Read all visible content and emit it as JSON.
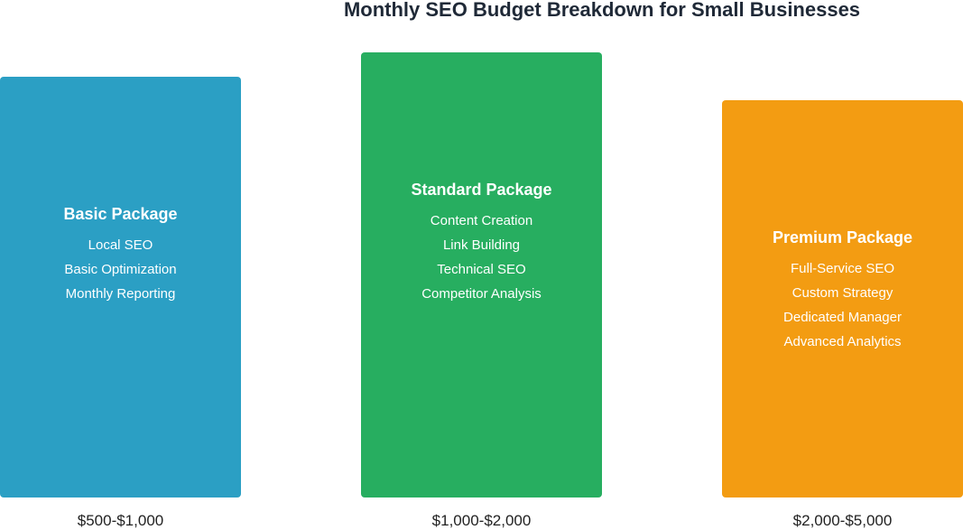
{
  "title": "Monthly SEO Budget Breakdown for Small Businesses",
  "packages": [
    {
      "name": "Basic Package",
      "features": [
        "Local SEO",
        "Basic Optimization",
        "Monthly Reporting"
      ],
      "price": "$500-$1,000",
      "color": "#2b9fc4"
    },
    {
      "name": "Standard Package",
      "features": [
        "Content Creation",
        "Link Building",
        "Technical SEO",
        "Competitor Analysis"
      ],
      "price": "$1,000-$2,000",
      "color": "#27ae60"
    },
    {
      "name": "Premium Package",
      "features": [
        "Full-Service SEO",
        "Custom Strategy",
        "Dedicated Manager",
        "Advanced Analytics"
      ],
      "price": "$2,000-$5,000",
      "color": "#f39c12"
    }
  ]
}
